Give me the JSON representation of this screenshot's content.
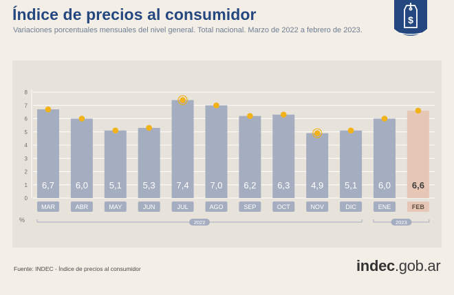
{
  "header": {
    "title": "Índice de precios al consumidor",
    "subtitle": "Variaciones porcentuales mensuales del nivel general. Total nacional. Marzo de 2022 a febrero de 2023."
  },
  "badge": {
    "symbol": "$",
    "color": "#25477f"
  },
  "footer": {
    "source": "Fuente: INDEC - Índice de precios al consumidor",
    "logo_main": "indec",
    "logo_suffix": ".gob.ar"
  },
  "colors": {
    "bar": "#a5aec0",
    "bar_highlight": "#e6c7b6",
    "label_pill": "#a5aec0",
    "label_pill_highlight": "#e6c7b6",
    "dot": "#f2b21a",
    "grid": "#ffffff",
    "axis_text": "#6d6d6d",
    "value_text": "#ffffff",
    "value_text_highlight": "#3d3d3d"
  },
  "chart_data": {
    "type": "bar",
    "categories": [
      "MAR",
      "ABR",
      "MAY",
      "JUN",
      "JUL",
      "AGO",
      "SEP",
      "OCT",
      "NOV",
      "DIC",
      "ENE",
      "FEB"
    ],
    "values": [
      6.7,
      6.0,
      5.1,
      5.3,
      7.4,
      7.0,
      6.2,
      6.3,
      4.9,
      5.1,
      6.0,
      6.6
    ],
    "value_labels": [
      "6,7",
      "6,0",
      "5,1",
      "5,3",
      "7,4",
      "7,0",
      "6,2",
      "6,3",
      "4,9",
      "5,1",
      "6,0",
      "6,6"
    ],
    "highlight_index": 11,
    "ring_markers": [
      4,
      8
    ],
    "ylabel": "%",
    "yticks": [
      "0",
      "1",
      "2",
      "3",
      "4",
      "5",
      "6",
      "7",
      "8"
    ],
    "ylim": [
      0,
      8
    ],
    "year_groups": [
      {
        "label": "2022",
        "start": 0,
        "end": 9
      },
      {
        "label": "2023",
        "start": 10,
        "end": 11
      }
    ],
    "grid": true
  }
}
